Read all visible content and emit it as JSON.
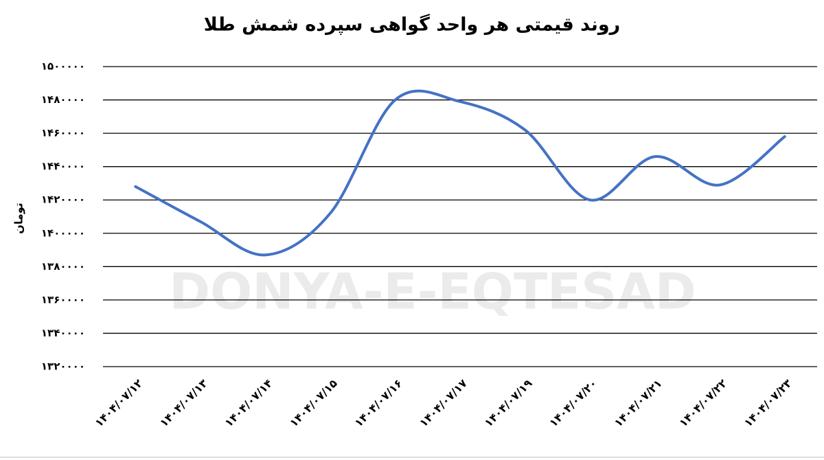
{
  "chart_data": {
    "type": "line",
    "title": "روند قیمتی هر واحد گواهی سپرده شمش طلا",
    "y_label": "تومان",
    "watermark": "DONYA-E-EQTESAD",
    "categories": [
      "۱۴۰۴/۰۷/۱۲",
      "۱۴۰۴/۰۷/۱۳",
      "۱۴۰۴/۰۷/۱۴",
      "۱۴۰۴/۰۷/۱۵",
      "۱۴۰۴/۰۷/۱۶",
      "۱۴۰۴/۰۷/۱۷",
      "۱۴۰۴/۰۷/۱۹",
      "۱۴۰۴/۰۷/۲۰",
      "۱۴۰۴/۰۷/۲۱",
      "۱۴۰۴/۰۷/۲۲",
      "۱۴۰۴/۰۷/۲۳"
    ],
    "values": [
      1428000,
      1407000,
      1387000,
      1412000,
      1480000,
      1479000,
      1462000,
      1420000,
      1446000,
      1429000,
      1458000
    ],
    "color": "#4472c4",
    "ylim": [
      1320000,
      1500000
    ],
    "yticks": [
      {
        "value": 1320000,
        "label": "۱۳۲۰۰۰۰"
      },
      {
        "value": 1340000,
        "label": "۱۳۴۰۰۰۰"
      },
      {
        "value": 1360000,
        "label": "۱۳۶۰۰۰۰"
      },
      {
        "value": 1380000,
        "label": "۱۳۸۰۰۰۰"
      },
      {
        "value": 1400000,
        "label": "۱۴۰۰۰۰۰"
      },
      {
        "value": 1420000,
        "label": "۱۴۲۰۰۰۰"
      },
      {
        "value": 1440000,
        "label": "۱۴۴۰۰۰۰"
      },
      {
        "value": 1460000,
        "label": "۱۴۶۰۰۰۰"
      },
      {
        "value": 1480000,
        "label": "۱۴۸۰۰۰۰"
      },
      {
        "value": 1500000,
        "label": "۱۵۰۰۰۰۰"
      }
    ],
    "grid": true
  }
}
